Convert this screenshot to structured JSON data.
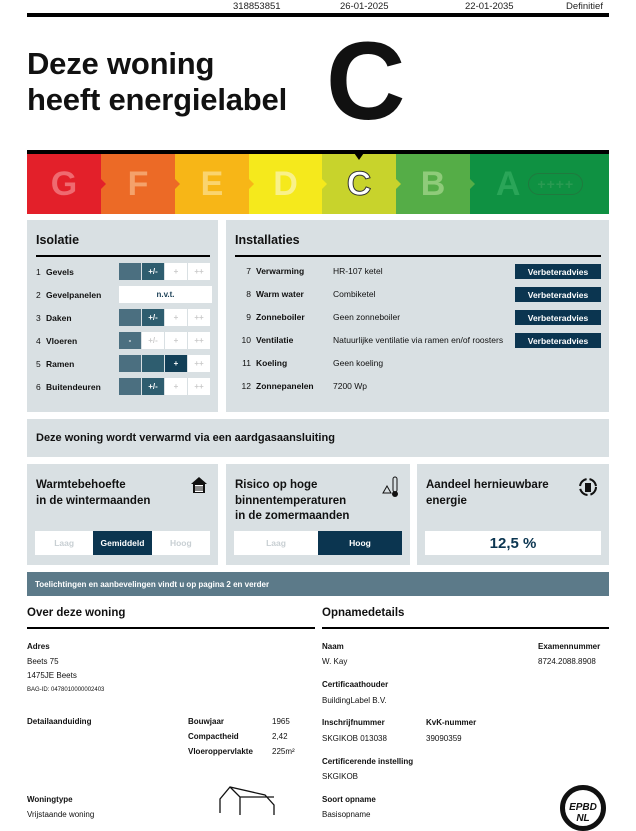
{
  "top": {
    "number": "318853851",
    "registered": "26-01-2025",
    "valid_until": "22-01-2035",
    "status": "Definitief"
  },
  "headline": {
    "line1": "Deze woning",
    "line2": "heeft energielabel",
    "label": "C"
  },
  "scale": [
    {
      "letter": "G",
      "color": "#e3202a",
      "text": "#ef6a70"
    },
    {
      "letter": "F",
      "color": "#ec6a26",
      "text": "#f4a26b"
    },
    {
      "letter": "E",
      "color": "#f7b617",
      "text": "#fad46f"
    },
    {
      "letter": "D",
      "color": "#f5e91c",
      "text": "#f9f18a"
    },
    {
      "letter": "C",
      "color": "#c8d32c",
      "text": "#ffffff",
      "selected": true
    },
    {
      "letter": "B",
      "color": "#55ad47",
      "text": "#8fcb7a"
    },
    {
      "letter": "A",
      "color": "#0f9142",
      "text": "#2aa558",
      "pill": "++++"
    }
  ],
  "isolatie": {
    "title": "Isolatie",
    "rows": [
      {
        "n": "1",
        "label": "Gevels",
        "cells": [
          "",
          "+/-",
          "+",
          "++"
        ],
        "level": 2
      },
      {
        "n": "2",
        "label": "Gevelpanelen",
        "value": "n.v.t."
      },
      {
        "n": "3",
        "label": "Daken",
        "cells": [
          "",
          "+/-",
          "+",
          "++"
        ],
        "level": 2
      },
      {
        "n": "4",
        "label": "Vloeren",
        "cells": [
          "-",
          "+/-",
          "+",
          "++"
        ],
        "level": 1
      },
      {
        "n": "5",
        "label": "Ramen",
        "cells": [
          "",
          "",
          "+",
          "++"
        ],
        "level": 3
      },
      {
        "n": "6",
        "label": "Buitendeuren",
        "cells": [
          "",
          "+/-",
          "+",
          "++"
        ],
        "level": 2
      }
    ]
  },
  "installaties": {
    "title": "Installaties",
    "advice_label": "Verbeteradvies",
    "rows": [
      {
        "n": "7",
        "label": "Verwarming",
        "value": "HR-107 ketel",
        "advice": true
      },
      {
        "n": "8",
        "label": "Warm water",
        "value": "Combiketel",
        "advice": true
      },
      {
        "n": "9",
        "label": "Zonneboiler",
        "value": "Geen zonneboiler",
        "advice": true
      },
      {
        "n": "10",
        "label": "Ventilatie",
        "value": "Natuurlijke ventilatie via ramen en/of roosters",
        "advice": true
      },
      {
        "n": "11",
        "label": "Koeling",
        "value": "Geen koeling"
      },
      {
        "n": "12",
        "label": "Zonnepanelen",
        "value": "7200 Wp"
      }
    ]
  },
  "heating_note": "Deze woning wordt verwarmd via een aardgasaansluiting",
  "cards": {
    "winter": {
      "title1": "Warmtebehoefte",
      "title2": "in de wintermaanden",
      "options": [
        "Laag",
        "Gemiddeld",
        "Hoog"
      ],
      "selected": "Gemiddeld"
    },
    "summer": {
      "title1": "Risico op hoge",
      "title2": "binnentemperaturen",
      "title3": "in de zomermaanden",
      "options": [
        "Laag",
        "Hoog"
      ],
      "selected": "Hoog"
    },
    "renewable": {
      "title1": "Aandeel hernieuwbare",
      "title2": "energie",
      "value": "12,5 %"
    }
  },
  "info_bar": "Toelichtingen en aanbevelingen vindt u op pagina 2 en verder",
  "woning": {
    "title": "Over deze woning",
    "adres_label": "Adres",
    "street": "Beets 75",
    "city": "1475JE Beets",
    "bag": "BAG-ID: 0478010000002403",
    "detail_label": "Detailaanduiding",
    "bouwjaar_label": "Bouwjaar",
    "bouwjaar": "1965",
    "compact_label": "Compactheid",
    "compact": "2,42",
    "opp_label": "Vloeroppervlakte",
    "opp": "225m²",
    "type_label": "Woningtype",
    "type": "Vrijstaande woning"
  },
  "opname": {
    "title": "Opnamedetails",
    "naam_label": "Naam",
    "naam": "W. Kay",
    "exam_label": "Examennummer",
    "exam": "8724.2088.8908",
    "cert_label": "Certificaathouder",
    "cert": "BuildingLabel B.V.",
    "inschr_label": "Inschrijfnummer",
    "inschr": "SKGIKOB 013038",
    "kvk_label": "KvK-nummer",
    "kvk": "39090359",
    "inst_label": "Certificerende instelling",
    "inst": "SKGIKOB",
    "soort_label": "Soort opname",
    "soort": "Basisopname",
    "logo": "EPBD NL"
  }
}
